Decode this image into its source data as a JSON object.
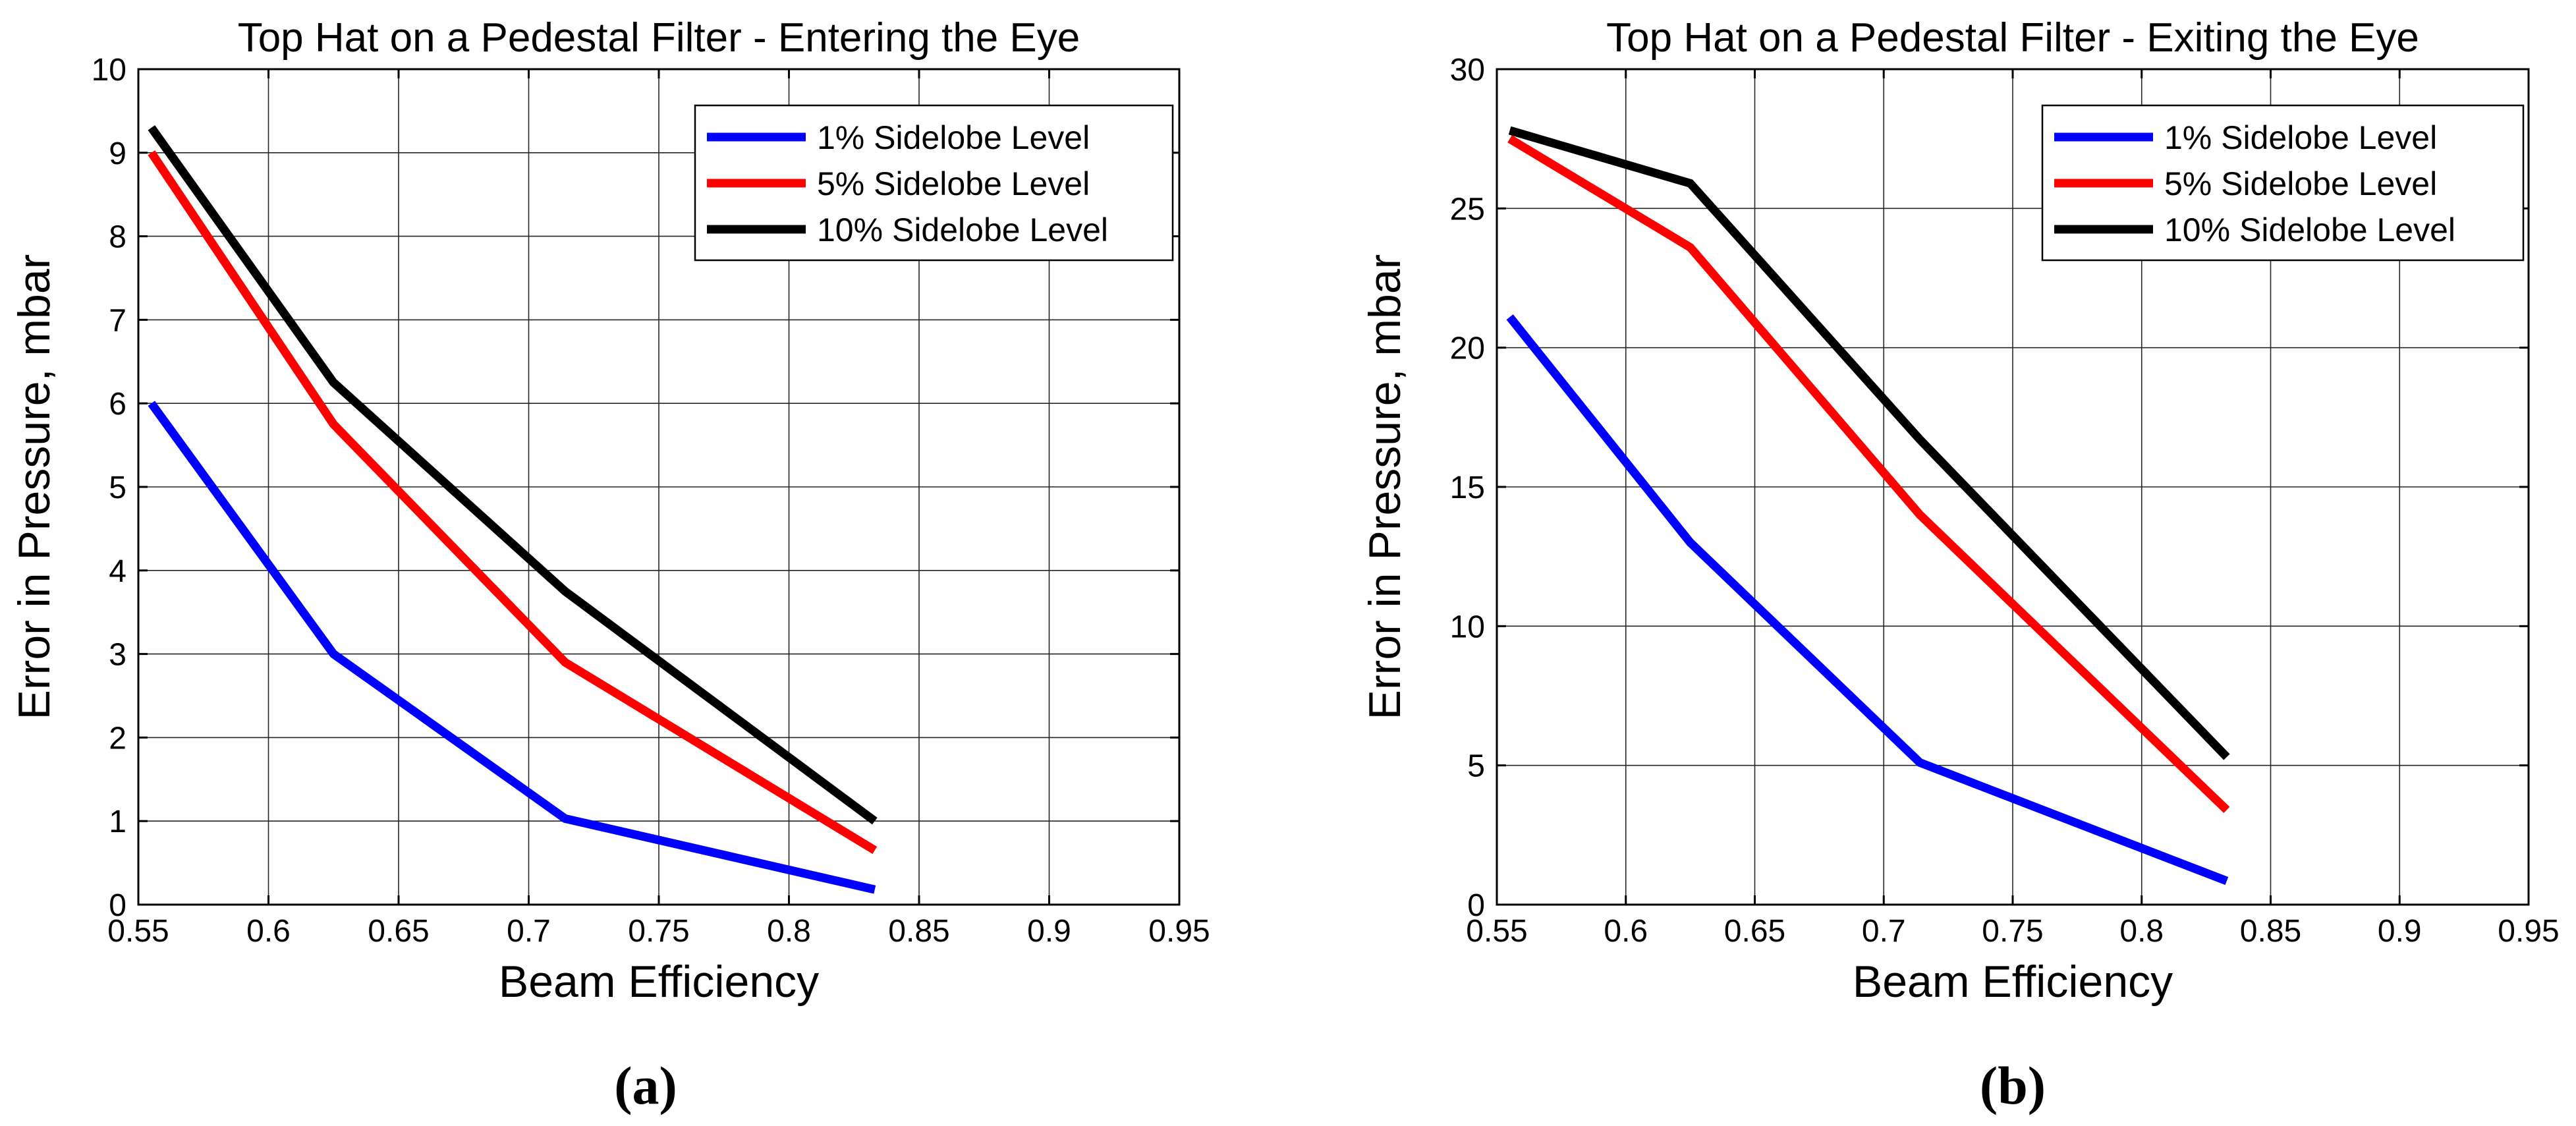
{
  "chart_data": [
    {
      "type": "line",
      "title": "Top Hat on a Pedestal Filter - Entering the Eye",
      "xlabel": "Beam Efficiency",
      "ylabel": "Error in Pressure, mbar",
      "panel_label": "(a)",
      "xlim": [
        0.55,
        0.95
      ],
      "ylim": [
        0,
        10
      ],
      "xticks": [
        "0.55",
        "0.6",
        "0.65",
        "0.7",
        "0.75",
        "0.8",
        "0.85",
        "0.9",
        "0.95"
      ],
      "yticks": [
        "0",
        "1",
        "2",
        "3",
        "4",
        "5",
        "6",
        "7",
        "8",
        "9",
        "10"
      ],
      "grid": true,
      "legend_position": "top-right",
      "x": [
        0.555,
        0.625,
        0.714,
        0.833
      ],
      "series": [
        {
          "name": "1% Sidelobe Level",
          "color": "#0000ff",
          "values": [
            6.0,
            3.0,
            1.03,
            0.18
          ]
        },
        {
          "name": "5% Sidelobe Level",
          "color": "#ff0000",
          "values": [
            9.0,
            5.75,
            2.9,
            0.65
          ]
        },
        {
          "name": "10% Sidelobe Level",
          "color": "#000000",
          "values": [
            9.3,
            6.25,
            3.75,
            1.0
          ]
        }
      ]
    },
    {
      "type": "line",
      "title": "Top Hat on a Pedestal Filter - Exiting the Eye",
      "xlabel": "Beam Efficiency",
      "ylabel": "Error in Pressure, mbar",
      "panel_label": "(b)",
      "xlim": [
        0.55,
        0.95
      ],
      "ylim": [
        0,
        30
      ],
      "xticks": [
        "0.55",
        "0.6",
        "0.65",
        "0.7",
        "0.75",
        "0.8",
        "0.85",
        "0.9",
        "0.95"
      ],
      "yticks": [
        "0",
        "5",
        "10",
        "15",
        "20",
        "25",
        "30"
      ],
      "grid": true,
      "legend_position": "top-right",
      "x": [
        0.555,
        0.625,
        0.714,
        0.833
      ],
      "series": [
        {
          "name": "1% Sidelobe Level",
          "color": "#0000ff",
          "values": [
            21.1,
            13.0,
            5.1,
            0.85
          ]
        },
        {
          "name": "5% Sidelobe Level",
          "color": "#ff0000",
          "values": [
            27.5,
            23.6,
            14.0,
            3.4
          ]
        },
        {
          "name": "10% Sidelobe Level",
          "color": "#000000",
          "values": [
            27.8,
            25.9,
            16.7,
            5.3
          ]
        }
      ]
    }
  ]
}
